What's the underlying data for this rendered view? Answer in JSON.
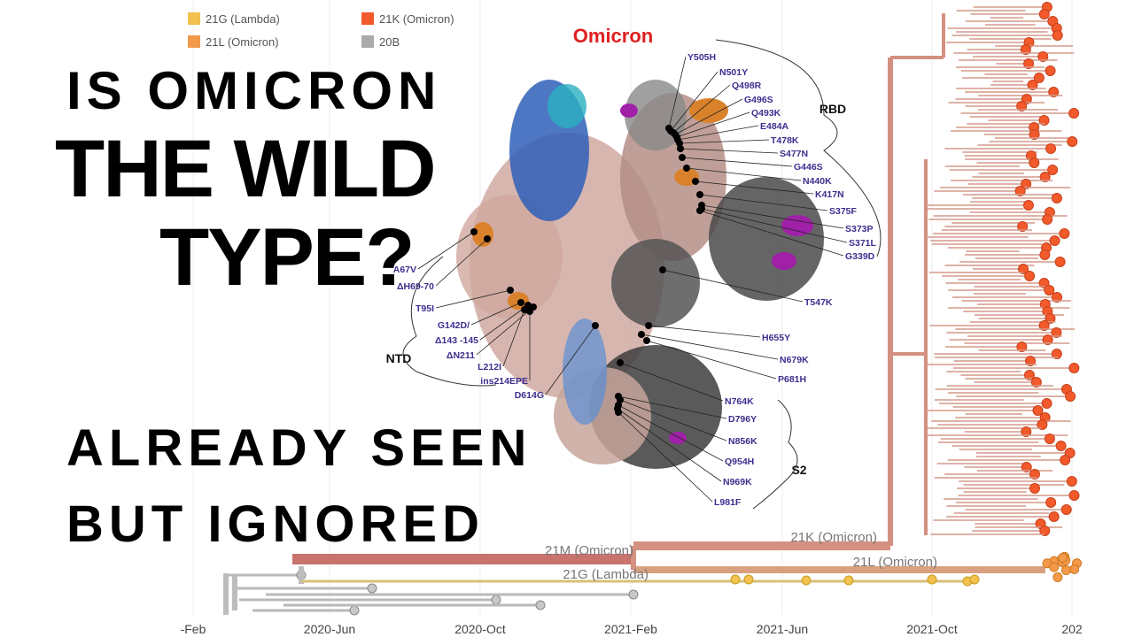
{
  "legend": [
    {
      "label": "21G (Lambda)",
      "color": "#f2c14e"
    },
    {
      "label": "21L (Omicron)",
      "color": "#f39a4a"
    },
    {
      "label": "21K (Omicron)",
      "color": "#f25a2c"
    },
    {
      "label": "20B",
      "color": "#a9aaab"
    }
  ],
  "headline": {
    "lines": [
      "IS OMICRON",
      "THE WILD",
      "TYPE?",
      "ALREADY SEEN",
      "BUT IGNORED"
    ]
  },
  "structure": {
    "title": "Omicron",
    "regions": [
      "RBD",
      "NTD",
      "S2"
    ],
    "mutations": [
      "Y505H",
      "N501Y",
      "Q498R",
      "G496S",
      "Q493K",
      "E484A",
      "T478K",
      "S477N",
      "G446S",
      "N440K",
      "K417N",
      "S375F",
      "S373P",
      "S371L",
      "G339D",
      "T547K",
      "H655Y",
      "N679K",
      "P681H",
      "N764K",
      "D796Y",
      "N856K",
      "Q954H",
      "N969K",
      "L981F",
      "A67V",
      "ΔH69-70",
      "T95I",
      "G142D/",
      "Δ143 -145",
      "ΔN211",
      "L212I",
      "ins214EPE",
      "D614G"
    ]
  },
  "tree": {
    "clade_labels": [
      "21M (Omicron)",
      "21K (Omicron)",
      "21L (Omicron)",
      "21G (Lambda)"
    ],
    "x_axis_labels": [
      "-Feb",
      "2020-Jun",
      "2020-Oct",
      "2021-Feb",
      "2021-Jun",
      "2021-Oct",
      "202"
    ]
  }
}
